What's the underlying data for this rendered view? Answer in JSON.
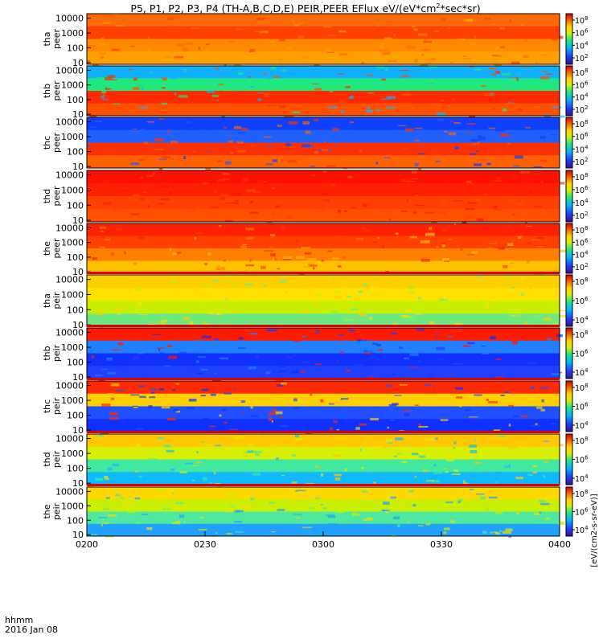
{
  "title_main": "P5, P1, P2, P3, P4 (TH-A,B,C,D,E) PEIR,PEER EFlux eV/(eV*cm",
  "title_sup": "2",
  "title_tail": "*sec*sr)",
  "footer": {
    "time_format": "hhmm",
    "date": "2016 Jan 08"
  },
  "colorbar_label": "[eV/(cm2-s-sr-eV)]",
  "colors": {
    "background": "#ffffff",
    "frame": "#000000"
  },
  "chart_data": {
    "type": "heatmap",
    "x_ticks": [
      "0200",
      "0230",
      "0300",
      "0330",
      "0400"
    ],
    "x_range": [
      "0200",
      "0400"
    ],
    "y_scale": "log",
    "panels": [
      {
        "probe": "tha",
        "species": "peer",
        "y_ticks": [
          "10000",
          "1000",
          "100",
          "10"
        ],
        "cbar_ticks": [
          "10",
          "10",
          "10",
          "10"
        ],
        "cbar_exp": [
          "8",
          "6",
          "4",
          "2"
        ]
      },
      {
        "probe": "thb",
        "species": "peer",
        "y_ticks": [
          "10000",
          "1000",
          "100",
          "10"
        ],
        "cbar_ticks": [
          "10",
          "10",
          "10",
          "10"
        ],
        "cbar_exp": [
          "8",
          "6",
          "4",
          "2"
        ]
      },
      {
        "probe": "thc",
        "species": "peer",
        "y_ticks": [
          "10000",
          "1000",
          "100",
          "10"
        ],
        "cbar_ticks": [
          "10",
          "10",
          "10",
          "10"
        ],
        "cbar_exp": [
          "8",
          "6",
          "4",
          "2"
        ]
      },
      {
        "probe": "thd",
        "species": "peer",
        "y_ticks": [
          "10000",
          "1000",
          "100",
          "10"
        ],
        "cbar_ticks": [
          "10",
          "10",
          "10",
          "10"
        ],
        "cbar_exp": [
          "8",
          "6",
          "4",
          "2"
        ]
      },
      {
        "probe": "the",
        "species": "peer",
        "y_ticks": [
          "10000",
          "1000",
          "100",
          "10"
        ],
        "cbar_ticks": [
          "10",
          "10",
          "10",
          "10"
        ],
        "cbar_exp": [
          "8",
          "6",
          "4",
          "2"
        ]
      },
      {
        "probe": "tha",
        "species": "peir",
        "y_ticks": [
          "10000",
          "1000",
          "100",
          "10"
        ],
        "cbar_ticks": [
          "10",
          "10",
          "10"
        ],
        "cbar_exp": [
          "8",
          "6",
          "4"
        ]
      },
      {
        "probe": "thb",
        "species": "peir",
        "y_ticks": [
          "10000",
          "1000",
          "100",
          "10"
        ],
        "cbar_ticks": [
          "10",
          "10",
          "10"
        ],
        "cbar_exp": [
          "8",
          "6",
          "4"
        ]
      },
      {
        "probe": "thc",
        "species": "peir",
        "y_ticks": [
          "10000",
          "1000",
          "100",
          "10"
        ],
        "cbar_ticks": [
          "10",
          "10",
          "10"
        ],
        "cbar_exp": [
          "8",
          "6",
          "4"
        ]
      },
      {
        "probe": "thd",
        "species": "peir",
        "y_ticks": [
          "10000",
          "1000",
          "100",
          "10"
        ],
        "cbar_ticks": [
          "10",
          "10",
          "10"
        ],
        "cbar_exp": [
          "8",
          "6",
          "4"
        ]
      },
      {
        "probe": "the",
        "species": "peir",
        "y_ticks": [
          "10000",
          "1000",
          "100",
          "10"
        ],
        "cbar_ticks": [
          "10",
          "10",
          "10"
        ],
        "cbar_exp": [
          "8",
          "6",
          "4"
        ]
      }
    ]
  }
}
